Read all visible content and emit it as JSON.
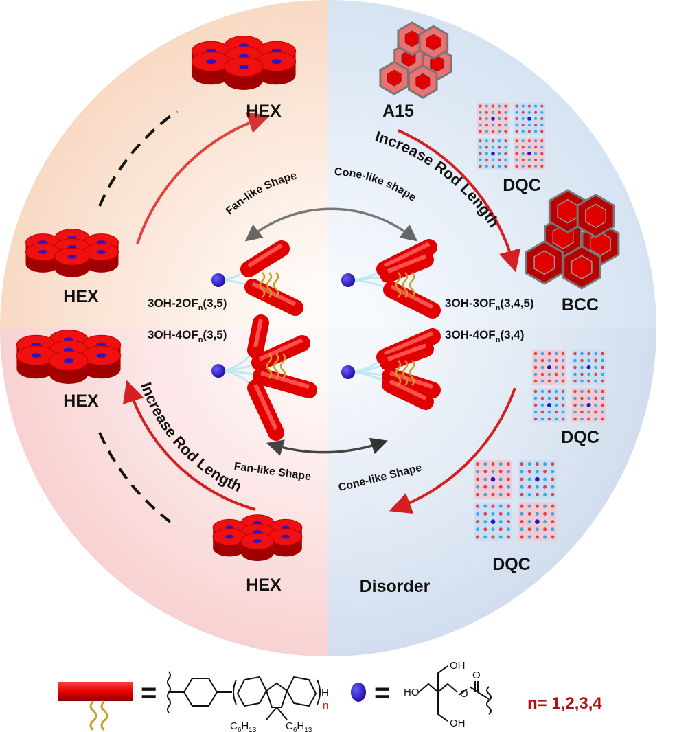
{
  "colors": {
    "top_left_quadrant": "#f8d9c4",
    "top_right_quadrant": "#d6e3f2",
    "bottom_left_quadrant": "#f8d2d2",
    "bottom_right_quadrant": "#d2deee",
    "rod": "#e80000",
    "head_sphere": "#2a14c8",
    "alkyl_chain": "#c8a020",
    "arrow": "#d42020",
    "n_label": "#b01010"
  },
  "phases": {
    "hex_top": "HEX",
    "hex_left_top": "HEX",
    "hex_left_bottom": "HEX",
    "hex_bottom": "HEX",
    "a15": "A15",
    "bcc": "BCC",
    "dqc_top": "DQC",
    "dqc_mid": "DQC",
    "dqc_bottom": "DQC",
    "disorder": "Disorder"
  },
  "arrows": {
    "increase_top": "Increase Rod Length",
    "increase_bottom": "Increase Rod Length",
    "fan_top": "Fan-like Shape",
    "cone_top": "Cone-like shape",
    "fan_bottom": "Fan-like Shape",
    "cone_bottom": "Cone-like Shape"
  },
  "molecules": [
    {
      "prefix": "3OH-2OF",
      "sub": "n",
      "suffix": "(3,5)"
    },
    {
      "prefix": "3OH-3OF",
      "sub": "n",
      "suffix": "(3,4,5)"
    },
    {
      "prefix": "3OH-4OF",
      "sub": "n",
      "suffix": "(3,5)"
    },
    {
      "prefix": "3OH-4OF",
      "sub": "n",
      "suffix": "(3,4)"
    }
  ],
  "legend": {
    "equals": "=",
    "terminal_h": "H",
    "repeat_n": "n",
    "alkyl_left": {
      "c": "C",
      "c_sub": "6",
      "h": "H",
      "h_sub": "13"
    },
    "alkyl_right": {
      "c": "C",
      "c_sub": "6",
      "h": "H",
      "h_sub": "13"
    },
    "oh_top": "OH",
    "ho_left": "HO",
    "oh_bottom": "OH",
    "ester_o": "O",
    "carbonyl_o": "O",
    "n_values": "n= 1,2,3,4"
  }
}
